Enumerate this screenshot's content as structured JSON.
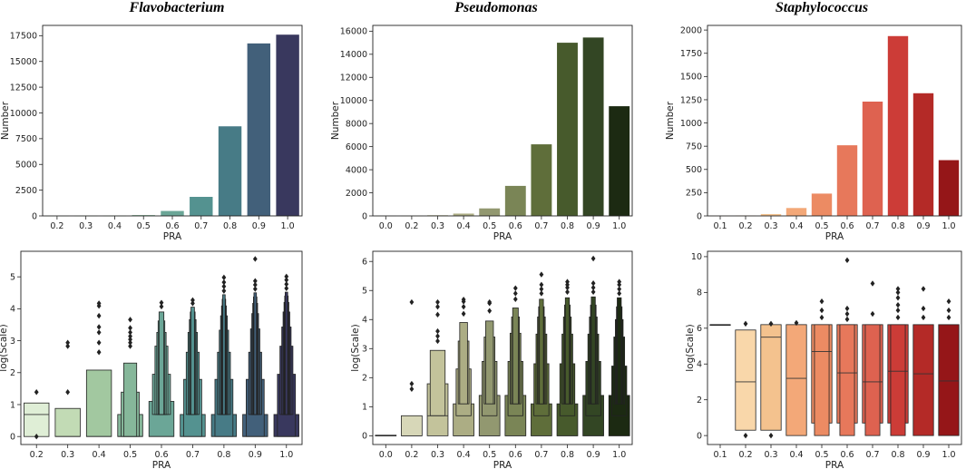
{
  "chart_data": [
    {
      "id": "flavo-bar",
      "type": "bar",
      "title": "Flavobacterium",
      "xlabel": "PRA",
      "ylabel": "Number",
      "ylim": [
        0,
        18500
      ],
      "yticks": [
        0,
        2500,
        5000,
        7500,
        10000,
        12500,
        15000,
        17500
      ],
      "categories": [
        "0.2",
        "0.3",
        "0.4",
        "0.5",
        "0.6",
        "0.7",
        "0.8",
        "0.9",
        "1.0"
      ],
      "values": [
        5,
        10,
        25,
        80,
        480,
        1850,
        8700,
        16750,
        17600
      ],
      "colors": [
        "#dfeed6",
        "#c2dbb5",
        "#a2c8a0",
        "#86b79a",
        "#6ba697",
        "#549290",
        "#477b86",
        "#42607a",
        "#39385e"
      ]
    },
    {
      "id": "pseudo-bar",
      "type": "bar",
      "title": "Pseudomonas",
      "xlabel": "PRA",
      "ylabel": "Number",
      "ylim": [
        0,
        16500
      ],
      "yticks": [
        0,
        2000,
        4000,
        6000,
        8000,
        10000,
        12000,
        14000,
        16000
      ],
      "categories": [
        "0.0",
        "0.2",
        "0.3",
        "0.4",
        "0.5",
        "0.6",
        "0.7",
        "0.8",
        "0.9",
        "1.0"
      ],
      "values": [
        5,
        15,
        60,
        200,
        650,
        2600,
        6200,
        15000,
        15450,
        9500
      ],
      "colors": [
        "#f0f0e6",
        "#d7d7b8",
        "#c3c39b",
        "#acad84",
        "#929870",
        "#7a8556",
        "#5f6e3a",
        "#475a2c",
        "#334624",
        "#1c2a12"
      ]
    },
    {
      "id": "staph-bar",
      "type": "bar",
      "title": "Staphylococcus",
      "xlabel": "PRA",
      "ylabel": "Number",
      "ylim": [
        0,
        2050
      ],
      "yticks": [
        0,
        250,
        500,
        750,
        1000,
        1250,
        1500,
        1750,
        2000
      ],
      "categories": [
        "0.1",
        "0.2",
        "0.3",
        "0.4",
        "0.5",
        "0.6",
        "0.7",
        "0.8",
        "0.9",
        "1.0"
      ],
      "values": [
        2,
        5,
        20,
        85,
        240,
        760,
        1230,
        1935,
        1320,
        600
      ],
      "colors": [
        "#fbe6c4",
        "#f9d7aa",
        "#f4c28e",
        "#f3a878",
        "#ec8b63",
        "#e7785b",
        "#de6250",
        "#cc3c37",
        "#b42a27",
        "#951618"
      ]
    },
    {
      "id": "flavo-boxen",
      "type": "boxen",
      "xlabel": "PRA",
      "ylabel": "log(Scale)",
      "ylim": [
        -0.25,
        5.8
      ],
      "yticks": [
        0,
        1,
        2,
        3,
        4,
        5
      ],
      "categories": [
        "0.2",
        "0.3",
        "0.4",
        "0.5",
        "0.6",
        "0.7",
        "0.8",
        "0.9",
        "1.0"
      ],
      "colors": [
        "#dfeed6",
        "#c2dbb5",
        "#a2c8a0",
        "#86b79a",
        "#6ba697",
        "#549290",
        "#477b86",
        "#42607a",
        "#39385e"
      ],
      "boxes": [
        {
          "median": 0.69,
          "levels": [
            [
              0,
              1.05
            ]
          ],
          "outliers": [
            0,
            1.39
          ]
        },
        {
          "median": 0,
          "levels": [
            [
              0,
              0.88
            ]
          ],
          "outliers": [
            1.39,
            2.83,
            2.94
          ]
        },
        {
          "median": 0,
          "levels": [
            [
              0,
              2.08
            ]
          ],
          "outliers": [
            2.64,
            2.94,
            3.26,
            3.43,
            3.78,
            4.09,
            4.17
          ]
        },
        {
          "median": 0,
          "levels": [
            [
              0,
              0.69
            ],
            [
              0,
              1.39
            ],
            [
              0,
              2.3
            ]
          ],
          "outliers": [
            2.83,
            2.94,
            3.04,
            3.14,
            3.26,
            3.4,
            3.66
          ]
        },
        {
          "median": 0,
          "levels": [
            [
              0,
              1.1
            ],
            [
              0.69,
              1.95
            ],
            [
              0.69,
              2.83
            ],
            [
              0.69,
              3.26
            ],
            [
              0.69,
              3.62
            ],
            [
              0.69,
              3.9
            ]
          ],
          "outliers": [
            4.07,
            4.19
          ]
        },
        {
          "median": 0,
          "levels": [
            [
              0,
              0.69
            ],
            [
              0,
              1.79
            ],
            [
              0.69,
              2.64
            ],
            [
              0.69,
              3.26
            ],
            [
              0.69,
              3.66
            ],
            [
              0.69,
              3.9
            ],
            [
              0.69,
              4.05
            ]
          ],
          "outliers": [
            4.17,
            4.27
          ]
        },
        {
          "median": 0,
          "levels": [
            [
              0,
              0.69
            ],
            [
              0,
              1.79
            ],
            [
              0.69,
              2.64
            ],
            [
              0.69,
              3.33
            ],
            [
              0.69,
              3.78
            ],
            [
              0.69,
              4.09
            ],
            [
              0.69,
              4.3
            ],
            [
              0.69,
              4.44
            ]
          ],
          "outliers": [
            4.56,
            4.7,
            4.83,
            4.98
          ]
        },
        {
          "median": 0,
          "levels": [
            [
              0,
              0.69
            ],
            [
              0,
              1.79
            ],
            [
              0.69,
              2.64
            ],
            [
              0.69,
              3.37
            ],
            [
              0.69,
              3.85
            ],
            [
              0.69,
              4.17
            ],
            [
              0.69,
              4.37
            ],
            [
              0.69,
              4.5
            ]
          ],
          "outliers": [
            4.62,
            4.75,
            4.87,
            5.56
          ]
        },
        {
          "median": 0,
          "levels": [
            [
              0,
              0.69
            ],
            [
              0,
              1.95
            ],
            [
              0.69,
              2.83
            ],
            [
              0.69,
              3.43
            ],
            [
              0.69,
              3.9
            ],
            [
              0.69,
              4.2
            ],
            [
              0.69,
              4.4
            ],
            [
              0.69,
              4.52
            ]
          ],
          "outliers": [
            4.64,
            4.77,
            4.9,
            5.01
          ]
        }
      ]
    },
    {
      "id": "pseudo-boxen",
      "type": "boxen",
      "xlabel": "PRA",
      "ylabel": "log(Scale)",
      "ylim": [
        -0.3,
        6.35
      ],
      "yticks": [
        0,
        1,
        2,
        3,
        4,
        5,
        6
      ],
      "categories": [
        "0.0",
        "0.2",
        "0.3",
        "0.4",
        "0.5",
        "0.6",
        "0.7",
        "0.8",
        "0.9",
        "1.0"
      ],
      "colors": [
        "#f0f0e6",
        "#d7d7b8",
        "#c3c39b",
        "#acad84",
        "#929870",
        "#7a8556",
        "#5f6e3a",
        "#475a2c",
        "#334624",
        "#1c2a12"
      ],
      "boxes": [
        {
          "median": 0,
          "levels": [
            [
              0,
              0.02
            ]
          ],
          "outliers": []
        },
        {
          "median": 0,
          "levels": [
            [
              0,
              0.69
            ]
          ],
          "outliers": [
            1.61,
            1.79,
            4.6
          ]
        },
        {
          "median": 0.69,
          "levels": [
            [
              0,
              1.79
            ],
            [
              0.69,
              2.94
            ]
          ],
          "outliers": [
            3.26,
            3.43,
            3.6,
            4.17,
            4.44,
            4.6
          ]
        },
        {
          "median": 0,
          "levels": [
            [
              0,
              1.1
            ],
            [
              0.69,
              2.3
            ],
            [
              1.1,
              3.26
            ],
            [
              1.1,
              3.9
            ]
          ],
          "outliers": [
            4.2,
            4.44,
            4.62,
            4.69
          ]
        },
        {
          "median": 0,
          "levels": [
            [
              0,
              1.39
            ],
            [
              0.69,
              2.56
            ],
            [
              1.1,
              3.4
            ],
            [
              1.1,
              3.95
            ]
          ],
          "outliers": [
            4.3,
            4.56,
            4.6
          ]
        },
        {
          "median": 0,
          "levels": [
            [
              0,
              1.39
            ],
            [
              0.69,
              2.56
            ],
            [
              1.1,
              3.53
            ],
            [
              1.1,
              4.09
            ],
            [
              1.1,
              4.4
            ]
          ],
          "outliers": [
            4.7,
            4.9,
            5.08
          ]
        },
        {
          "median": 0,
          "levels": [
            [
              0,
              1.1
            ],
            [
              0.69,
              2.48
            ],
            [
              1.1,
              3.5
            ],
            [
              1.1,
              4.09
            ],
            [
              1.1,
              4.44
            ],
            [
              1.1,
              4.7
            ]
          ],
          "outliers": [
            4.9,
            5.05,
            5.2,
            5.55
          ]
        },
        {
          "median": 0,
          "levels": [
            [
              0,
              1.1
            ],
            [
              0.69,
              2.48
            ],
            [
              1.1,
              3.5
            ],
            [
              1.1,
              4.09
            ],
            [
              1.1,
              4.5
            ],
            [
              1.1,
              4.75
            ]
          ],
          "outliers": [
            4.95,
            5.1,
            5.2,
            5.3
          ]
        },
        {
          "median": 0,
          "levels": [
            [
              0,
              1.39
            ],
            [
              0.69,
              2.56
            ],
            [
              1.1,
              3.5
            ],
            [
              1.1,
              4.09
            ],
            [
              1.1,
              4.5
            ],
            [
              1.1,
              4.78
            ]
          ],
          "outliers": [
            4.95,
            5.1,
            5.25,
            6.1
          ]
        },
        {
          "median": 0,
          "levels": [
            [
              0,
              1.39
            ],
            [
              0.69,
              2.4
            ],
            [
              1.1,
              3.4
            ],
            [
              1.1,
              4.0
            ],
            [
              1.1,
              4.44
            ],
            [
              1.1,
              4.75
            ]
          ],
          "outliers": [
            4.9,
            5.05,
            5.2,
            5.3
          ]
        }
      ]
    },
    {
      "id": "staph-boxen",
      "type": "boxen",
      "xlabel": "PRA",
      "ylabel": "log(Scale)",
      "ylim": [
        -0.5,
        10.3
      ],
      "yticks": [
        0,
        2,
        4,
        6,
        8,
        10
      ],
      "categories": [
        "0.1",
        "0.2",
        "0.3",
        "0.4",
        "0.5",
        "0.6",
        "0.7",
        "0.8",
        "0.9",
        "1.0"
      ],
      "colors": [
        "#fbe6c4",
        "#f9d7aa",
        "#f4c28e",
        "#f3a878",
        "#ec8b63",
        "#e7785b",
        "#de6250",
        "#cc3c37",
        "#b42a27",
        "#951618"
      ],
      "boxes": [
        {
          "median": 6.2,
          "levels": [
            [
              6.2,
              6.2
            ]
          ],
          "outliers": []
        },
        {
          "median": 3.0,
          "levels": [
            [
              0.3,
              5.9
            ]
          ],
          "outliers": [
            0,
            6.25
          ]
        },
        {
          "median": 5.5,
          "levels": [
            [
              0.3,
              6.2
            ]
          ],
          "outliers": [
            0,
            6.25
          ]
        },
        {
          "median": 3.2,
          "levels": [
            [
              0,
              6.2
            ]
          ],
          "outliers": [
            6.3
          ]
        },
        {
          "median": 4.7,
          "levels": [
            [
              0.7,
              6.2
            ],
            [
              0,
              6.2
            ]
          ],
          "outliers": [
            6.6,
            7.0,
            7.5
          ]
        },
        {
          "median": 3.5,
          "levels": [
            [
              0.7,
              6.2
            ],
            [
              0,
              6.2
            ]
          ],
          "outliers": [
            6.5,
            6.8,
            7.1,
            9.8
          ]
        },
        {
          "median": 3.0,
          "levels": [
            [
              0.7,
              6.2
            ],
            [
              0,
              6.2
            ]
          ],
          "outliers": [
            6.8,
            8.5
          ]
        },
        {
          "median": 3.6,
          "levels": [
            [
              0.7,
              6.2
            ],
            [
              0,
              6.2
            ]
          ],
          "outliers": [
            6.6,
            7.0,
            7.3,
            7.7,
            8.0,
            8.2
          ]
        },
        {
          "median": 3.45,
          "levels": [
            [
              0,
              6.2
            ]
          ],
          "outliers": [
            6.6,
            7.1,
            8.2
          ]
        },
        {
          "median": 3.05,
          "levels": [
            [
              0,
              6.2
            ]
          ],
          "outliers": [
            6.6,
            7.0,
            7.5
          ]
        }
      ]
    }
  ]
}
